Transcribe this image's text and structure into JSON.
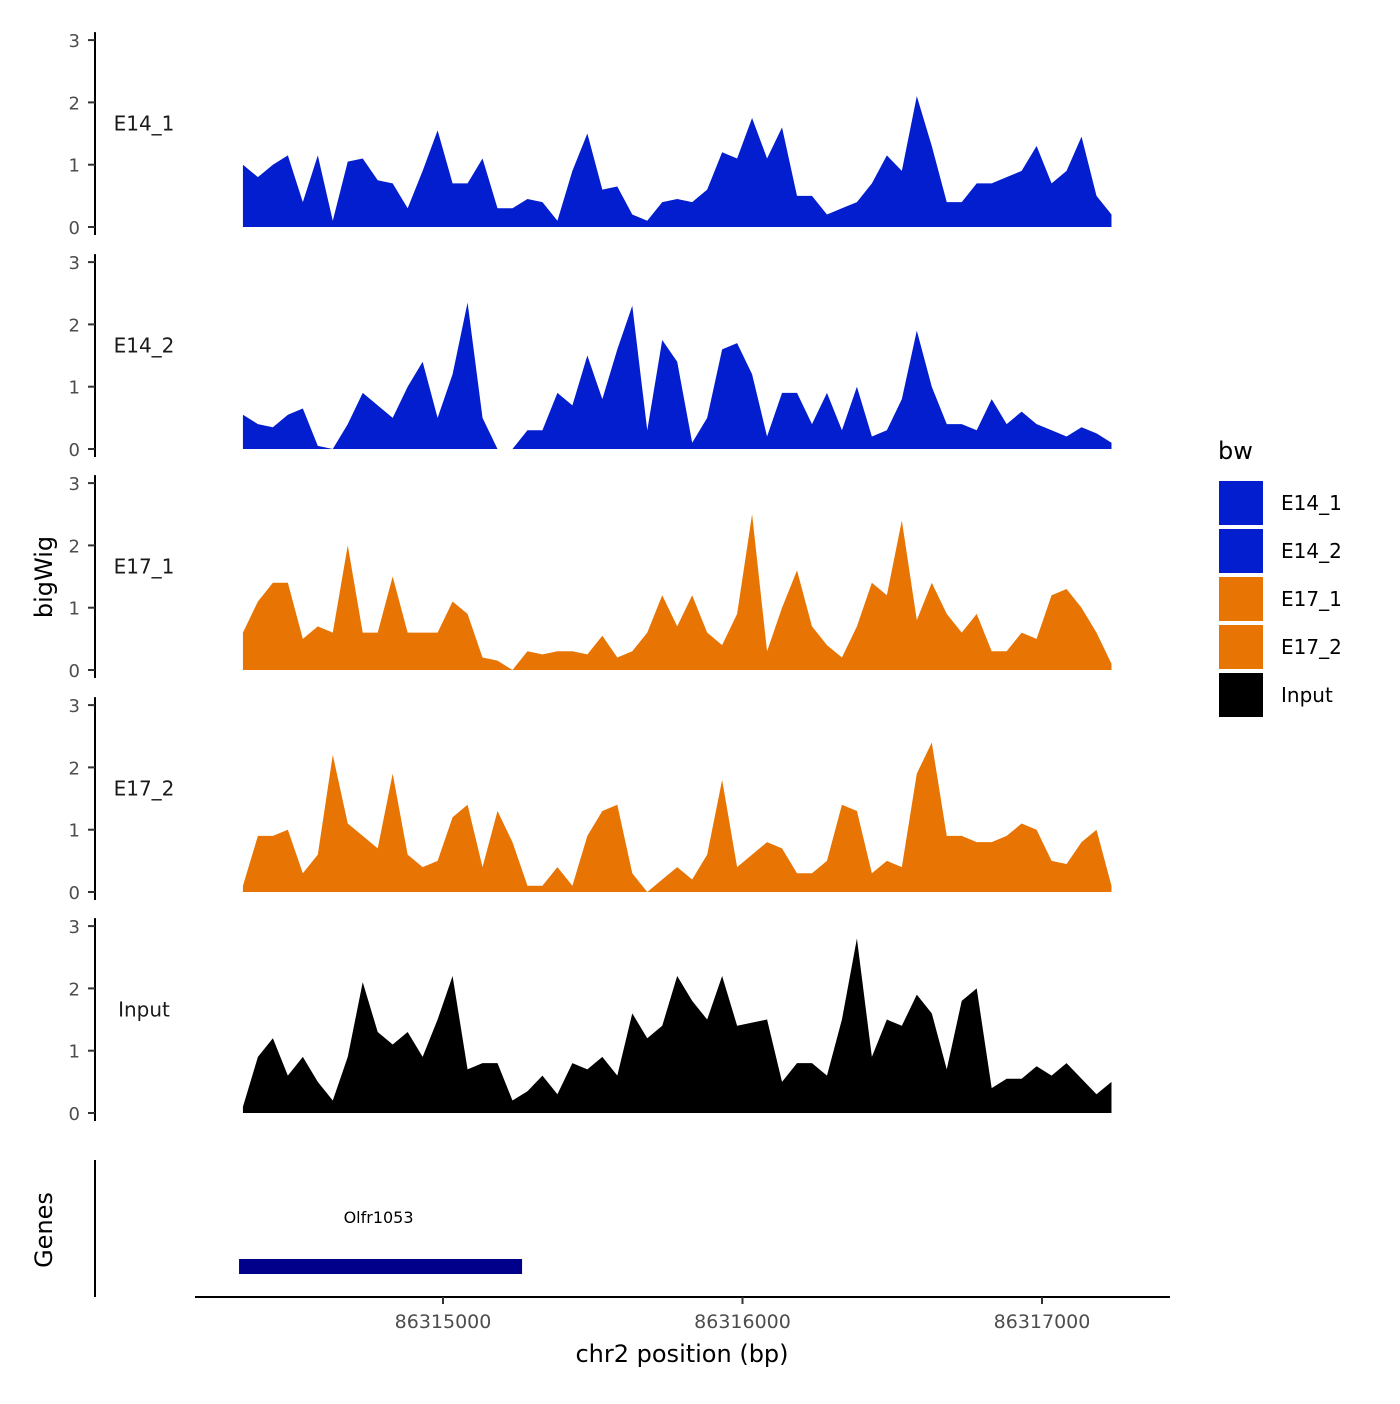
{
  "chart_data": {
    "type": "area",
    "title": "",
    "xlabel": "chr2 position (bp)",
    "ylabel": "bigWig",
    "gene_track_label": "Genes",
    "x_ticks": [
      86315000,
      86316000,
      86317000
    ],
    "x_tick_labels": [
      "86315000",
      "86316000",
      "86317000"
    ],
    "xlim": [
      86314167,
      86317423
    ],
    "y_ticks": [
      0,
      1,
      2,
      3
    ],
    "y_tick_labels": [
      "0",
      "1",
      "2",
      "3"
    ],
    "ylim": [
      0,
      3
    ],
    "grid": false,
    "x_start": 86314332,
    "x_step": 50,
    "series": [
      {
        "name": "E14_1",
        "color": "#031ECF",
        "values": [
          1.0,
          0.8,
          1.0,
          1.15,
          0.4,
          1.15,
          0.1,
          1.05,
          1.1,
          0.75,
          0.7,
          0.3,
          0.9,
          1.55,
          0.7,
          0.7,
          1.1,
          0.3,
          0.3,
          0.45,
          0.4,
          0.1,
          0.9,
          1.5,
          0.6,
          0.65,
          0.2,
          0.1,
          0.4,
          0.45,
          0.4,
          0.6,
          1.2,
          1.1,
          1.75,
          1.1,
          1.6,
          0.5,
          0.5,
          0.2,
          0.3,
          0.4,
          0.7,
          1.15,
          0.9,
          2.1,
          1.3,
          0.4,
          0.4,
          0.7,
          0.7,
          0.8,
          0.9,
          1.3,
          0.7,
          0.9,
          1.45,
          0.5,
          0.2
        ]
      },
      {
        "name": "E14_2",
        "color": "#031ECF",
        "values": [
          0.55,
          0.4,
          0.35,
          0.55,
          0.65,
          0.05,
          0,
          0.4,
          0.9,
          0.7,
          0.5,
          1.0,
          1.4,
          0.5,
          1.2,
          2.35,
          0.5,
          0,
          0,
          0.3,
          0.3,
          0.9,
          0.7,
          1.5,
          0.8,
          1.6,
          2.3,
          0.3,
          1.75,
          1.4,
          0.1,
          0.5,
          1.6,
          1.7,
          1.2,
          0.2,
          0.9,
          0.9,
          0.4,
          0.9,
          0.3,
          1.0,
          0.2,
          0.3,
          0.8,
          1.9,
          1.0,
          0.4,
          0.4,
          0.3,
          0.8,
          0.4,
          0.6,
          0.4,
          0.3,
          0.2,
          0.35,
          0.25,
          0.1
        ]
      },
      {
        "name": "E17_1",
        "color": "#E87503",
        "values": [
          0.6,
          1.1,
          1.4,
          1.4,
          0.5,
          0.7,
          0.6,
          2.0,
          0.6,
          0.6,
          1.5,
          0.6,
          0.6,
          0.6,
          1.1,
          0.9,
          0.2,
          0.15,
          0,
          0.3,
          0.25,
          0.3,
          0.3,
          0.25,
          0.55,
          0.2,
          0.3,
          0.6,
          1.2,
          0.7,
          1.2,
          0.6,
          0.4,
          0.9,
          2.5,
          0.3,
          1.0,
          1.6,
          0.7,
          0.4,
          0.2,
          0.7,
          1.4,
          1.2,
          2.4,
          0.8,
          1.4,
          0.9,
          0.6,
          0.9,
          0.3,
          0.3,
          0.6,
          0.5,
          1.2,
          1.3,
          1.0,
          0.6,
          0.1
        ]
      },
      {
        "name": "E17_2",
        "color": "#E87503",
        "values": [
          0.1,
          0.9,
          0.9,
          1.0,
          0.3,
          0.6,
          2.2,
          1.1,
          0.9,
          0.7,
          1.9,
          0.6,
          0.4,
          0.5,
          1.2,
          1.4,
          0.4,
          1.3,
          0.8,
          0.1,
          0.1,
          0.4,
          0.1,
          0.9,
          1.3,
          1.4,
          0.3,
          0,
          0.2,
          0.4,
          0.2,
          0.6,
          1.8,
          0.4,
          0.6,
          0.8,
          0.7,
          0.3,
          0.3,
          0.5,
          1.4,
          1.3,
          0.3,
          0.5,
          0.4,
          1.9,
          2.4,
          0.9,
          0.9,
          0.8,
          0.8,
          0.9,
          1.1,
          1.0,
          0.5,
          0.45,
          0.8,
          1.0,
          0.1
        ]
      },
      {
        "name": "Input",
        "color": "#000000",
        "values": [
          0.1,
          0.9,
          1.2,
          0.6,
          0.9,
          0.5,
          0.2,
          0.9,
          2.1,
          1.3,
          1.1,
          1.3,
          0.9,
          1.5,
          2.2,
          0.7,
          0.8,
          0.8,
          0.2,
          0.35,
          0.6,
          0.3,
          0.8,
          0.7,
          0.9,
          0.6,
          1.6,
          1.2,
          1.4,
          2.2,
          1.8,
          1.5,
          2.2,
          1.4,
          1.45,
          1.5,
          0.5,
          0.8,
          0.8,
          0.6,
          1.5,
          2.8,
          0.9,
          1.5,
          1.4,
          1.9,
          1.6,
          0.7,
          1.8,
          2.0,
          0.4,
          0.55,
          0.55,
          0.75,
          0.6,
          0.8,
          0.55,
          0.3,
          0.5
        ]
      }
    ],
    "genes": [
      {
        "name": "Olfr1053",
        "start": 86314319,
        "end": 86315264,
        "color": "#00008B"
      }
    ],
    "legend": {
      "title": "bw",
      "position": "right",
      "entries": [
        {
          "label": "E14_1",
          "color": "#031ECF"
        },
        {
          "label": "E14_2",
          "color": "#031ECF"
        },
        {
          "label": "E17_1",
          "color": "#E87503"
        },
        {
          "label": "E17_2",
          "color": "#E87503"
        },
        {
          "label": "Input",
          "color": "#000000"
        }
      ]
    }
  }
}
